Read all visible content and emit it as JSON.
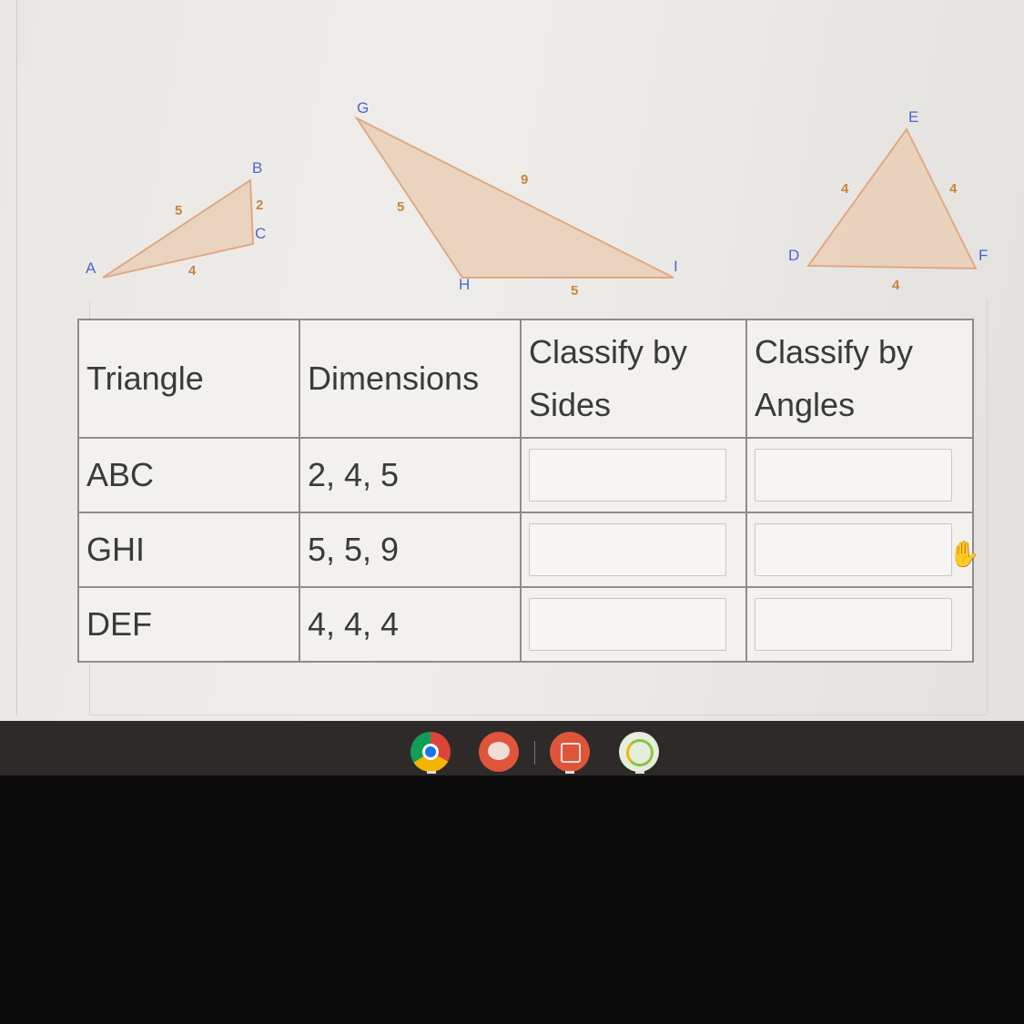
{
  "figure": {
    "abc": {
      "vertices": [
        "A",
        "B",
        "C"
      ],
      "sides": [
        "5",
        "2",
        "4"
      ]
    },
    "ghi": {
      "vertices": [
        "G",
        "H",
        "I"
      ],
      "sides": [
        "5",
        "9",
        "5"
      ]
    },
    "def": {
      "vertices": [
        "D",
        "E",
        "F"
      ],
      "sides": [
        "4",
        "4",
        "4"
      ]
    }
  },
  "table": {
    "headers": [
      "Triangle",
      "Dimensions",
      "Classify by Sides",
      "Classify by Angles"
    ],
    "rows": [
      {
        "triangle": "ABC",
        "dimensions": "2, 4, 5",
        "sides": "",
        "angles": ""
      },
      {
        "triangle": "GHI",
        "dimensions": "5, 5, 9",
        "sides": "",
        "angles": ""
      },
      {
        "triangle": "DEF",
        "dimensions": "4, 4, 4",
        "sides": "",
        "angles": ""
      }
    ]
  },
  "taskbar": {
    "apps": [
      {
        "name": "chrome-icon",
        "color": "#db4437"
      },
      {
        "name": "canvas-draw-icon",
        "color": "#e0553a"
      },
      {
        "name": "screencastify-icon",
        "color": "#e0553a"
      },
      {
        "name": "timer-icon",
        "color": "#8bc34a"
      }
    ]
  },
  "colors": {
    "triangle_fill": "#e8cdb4",
    "triangle_stroke": "#e0a883",
    "vertex_label": "#4a64d8",
    "side_label": "#c8843e"
  }
}
